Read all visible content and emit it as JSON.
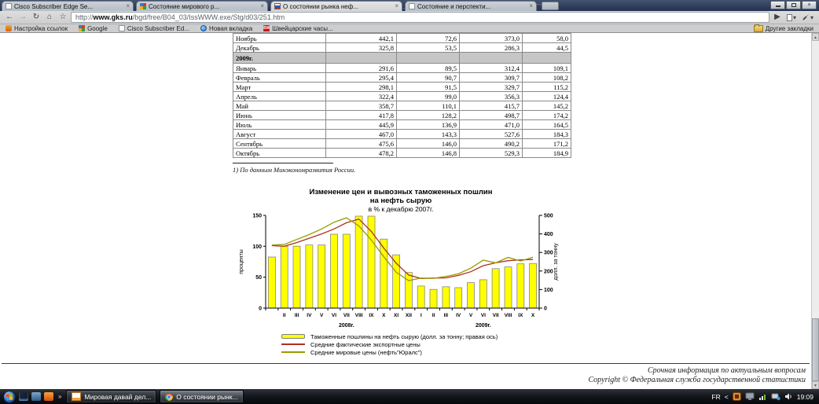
{
  "browser": {
    "tabs": [
      {
        "title": "Cisco Subscriber Edge Se...",
        "active": false
      },
      {
        "title": "Состояние мирового р...",
        "active": false
      },
      {
        "title": "О состоянии рынка неф...",
        "active": true
      },
      {
        "title": "Состояние и перспекти...",
        "active": false
      }
    ],
    "tab_close_glyph": "×",
    "url_prefix": "http://",
    "url_host": "www.gks.ru",
    "url_path": "/bgd/free/B04_03/IssWWW.exe/Stg/d03/251.htm",
    "toolbar_glyphs": {
      "back": "←",
      "forward": "→",
      "reload": "↻",
      "home": "⌂",
      "star": "☆",
      "go": "▶",
      "caret": "▾",
      "close": "×"
    },
    "bookmarks": [
      "Настройка ссылок",
      "Google",
      "Cisco Subscriber Ed...",
      "Новая вкладка",
      "Швейцарские часы..."
    ],
    "bw_badge": "BW",
    "other_bookmarks_label": "Другие закладки",
    "scroll_up_glyph": "▲",
    "scroll_down_glyph": "▼"
  },
  "page": {
    "table": {
      "rows": [
        {
          "label": "Ноябрь",
          "values": [
            "442,1",
            "72,6",
            "373,0",
            "58,0"
          ]
        },
        {
          "label": "Декабрь",
          "values": [
            "325,8",
            "53,5",
            "286,3",
            "44,5"
          ]
        },
        {
          "label": "2009г.",
          "section": true
        },
        {
          "label": "Январь",
          "values": [
            "291,6",
            "89,5",
            "312,4",
            "109,1"
          ]
        },
        {
          "label": "Февраль",
          "values": [
            "295,4",
            "90,7",
            "309,7",
            "108,2"
          ]
        },
        {
          "label": "Март",
          "values": [
            "298,1",
            "91,5",
            "329,7",
            "115,2"
          ]
        },
        {
          "label": "Апрель",
          "values": [
            "322,4",
            "99,0",
            "356,3",
            "124,4"
          ]
        },
        {
          "label": "Май",
          "values": [
            "358,7",
            "110,1",
            "415,7",
            "145,2"
          ]
        },
        {
          "label": "Июнь",
          "values": [
            "417,8",
            "128,2",
            "498,7",
            "174,2"
          ]
        },
        {
          "label": "Июль",
          "values": [
            "445,9",
            "136,9",
            "471,0",
            "164,5"
          ]
        },
        {
          "label": "Август",
          "values": [
            "467,0",
            "143,3",
            "527,6",
            "184,3"
          ]
        },
        {
          "label": "Сентябрь",
          "values": [
            "475,6",
            "146,0",
            "490,2",
            "171,2"
          ]
        },
        {
          "label": "Октябрь",
          "values": [
            "478,2",
            "146,8",
            "529,3",
            "184,9"
          ]
        }
      ]
    },
    "footnote": "1) По данным Минэкономразвития России.",
    "footer": {
      "line1": "Срочная информация по актуальным вопросам",
      "line2": "Copyright © Федеральная служба государственной статистики"
    }
  },
  "chart_data": {
    "type": "bar",
    "title": "Изменение цен и вывозных таможенных пошлин на нефть сырую",
    "title_line1": "Изменение цен и вывозных таможенных пошлин",
    "title_line2": "на нефть сырую",
    "subtitle": "в % к декабрю 2007г.",
    "categories": [
      "I",
      "II",
      "III",
      "IV",
      "V",
      "VI",
      "VII",
      "VIII",
      "IX",
      "X",
      "XI",
      "XII",
      "I",
      "II",
      "III",
      "IV",
      "V",
      "VI",
      "VII",
      "VIII",
      "IX",
      "X"
    ],
    "hidden_first_tick": true,
    "x_group_labels": [
      "2008г.",
      "2009г."
    ],
    "bar_series": {
      "name": "Таможенные пошлины на нефть сырую (долл. за тонну; правая ось)",
      "axis": "right",
      "color": "#ffff00",
      "border": "#7f7f7f",
      "values": [
        275.4,
        333.8,
        333.8,
        340.1,
        340.1,
        398.1,
        398.1,
        495.9,
        495.9,
        372.2,
        287.3,
        192.1,
        119.1,
        100.9,
        115.3,
        110.0,
        137.7,
        152.8,
        212.6,
        222.0,
        238.6,
        240.7
      ]
    },
    "line_series": [
      {
        "name": "Средние фактические экспортные цены",
        "axis": "left",
        "color": "#b03020",
        "values": [
          101,
          100,
          106,
          113,
          120,
          128,
          138,
          144,
          124,
          97,
          72.6,
          53.5,
          47.9,
          48.5,
          48.9,
          52.9,
          58.9,
          68.6,
          73.2,
          76.7,
          78.1,
          78.5
        ]
      },
      {
        "name": "Средние мировые цены (нефть\"Юралс\")",
        "axis": "left",
        "color": "#9a9a00",
        "values": [
          102,
          103,
          111,
          119,
          128,
          139,
          146,
          133,
          110,
          83,
          58.0,
          44.5,
          48.6,
          48.1,
          51.2,
          55.4,
          64.6,
          77.5,
          73.2,
          82.0,
          76.2,
          82.3
        ]
      }
    ],
    "left_axis": {
      "label": "проценты",
      "min": 0,
      "max": 150,
      "ticks": [
        0,
        50,
        100,
        150
      ]
    },
    "right_axis": {
      "label": "долл. за тонну",
      "min": 0,
      "max": 500,
      "ticks": [
        0,
        100,
        200,
        300,
        400,
        500
      ]
    },
    "grid": false,
    "legend_position": "bottom"
  },
  "taskbar": {
    "quicklaunch_more": "»",
    "buttons": [
      {
        "label": "Мировая давай дел...",
        "active": false
      },
      {
        "label": "О состоянии рынк...",
        "active": true
      }
    ],
    "tray": {
      "language": "FR",
      "expand_glyph": "<",
      "time": "19:09"
    }
  }
}
